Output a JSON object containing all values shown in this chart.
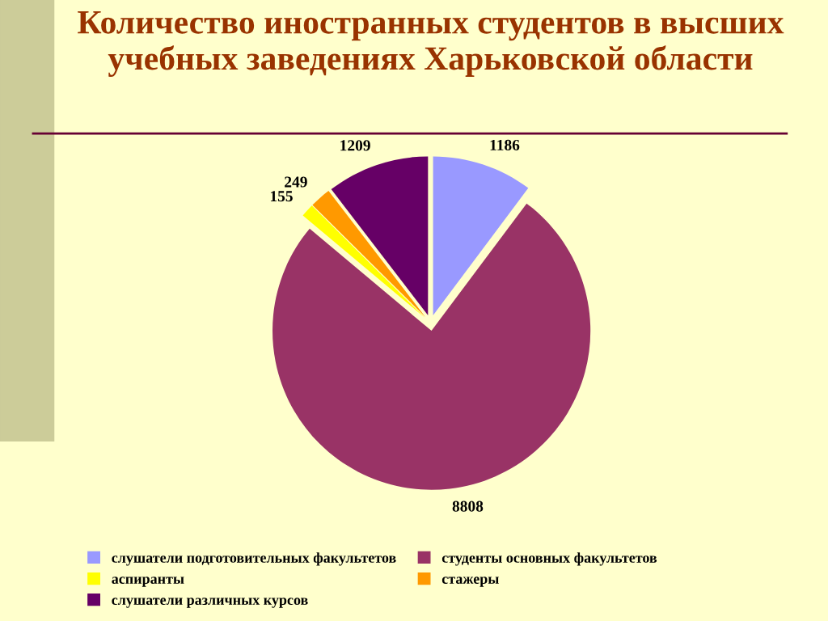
{
  "chart_data": {
    "type": "pie",
    "title": "Количество иностранных студентов в высших учебных заведениях Харьковской области",
    "categories": [
      "слушатели подготовительных факультетов",
      "студенты основных факультетов",
      "аспиранты",
      "стажеры",
      "слушатели различных курсов"
    ],
    "values": [
      1186,
      8808,
      155,
      249,
      1209
    ],
    "colors": [
      "#9999ff",
      "#993366",
      "#ffff00",
      "#ff9900",
      "#660066"
    ],
    "data_labels": true,
    "legend": "bottom"
  }
}
